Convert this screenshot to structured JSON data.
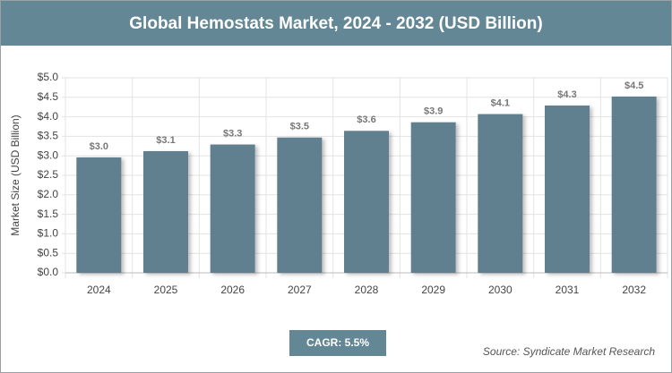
{
  "chart_data": {
    "type": "bar",
    "title": "Global Hemostats Market, 2024 - 2032 (USD Billion)",
    "y_label": "Market Size (USD Billion)",
    "categories": [
      "2024",
      "2025",
      "2026",
      "2027",
      "2028",
      "2029",
      "2030",
      "2031",
      "2032"
    ],
    "values": [
      2.96,
      3.12,
      3.29,
      3.47,
      3.64,
      3.86,
      4.07,
      4.29,
      4.52
    ],
    "value_labels": [
      "$3.0",
      "$3.1",
      "$3.3",
      "$3.5",
      "$3.6",
      "$3.9",
      "$4.1",
      "$4.3",
      "$4.5"
    ],
    "color": "#607f8f",
    "ylim": [
      0,
      5
    ],
    "yticks": [
      {
        "value": 0,
        "label": "$0.0"
      },
      {
        "value": 0.5,
        "label": "$0.5"
      },
      {
        "value": 1,
        "label": "$1.0"
      },
      {
        "value": 1.5,
        "label": "$1.5"
      },
      {
        "value": 2,
        "label": "$2.0"
      },
      {
        "value": 2.5,
        "label": "$2.5"
      },
      {
        "value": 3,
        "label": "$3.0"
      },
      {
        "value": 3.5,
        "label": "$3.5"
      },
      {
        "value": 4,
        "label": "$4.0"
      },
      {
        "value": 4.5,
        "label": "$4.5"
      },
      {
        "value": 5,
        "label": "$5.0"
      }
    ],
    "grid": true,
    "cagr_label": "CAGR: 5.5%",
    "source": "Source: Syndicate Market Research"
  }
}
